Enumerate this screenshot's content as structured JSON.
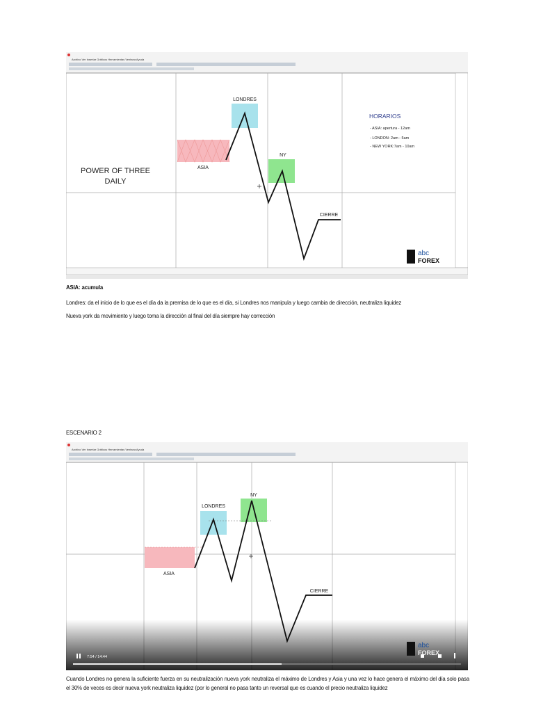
{
  "screenshot_1": {
    "menu": "Archivo   Ver   Insertar   Gráficos   Herramientas   Ventana   Ayuda",
    "chart_title_lines": [
      "POWER OF THREE",
      "DAILY"
    ],
    "labels": {
      "londres": "LONDRES",
      "asia": "ASIA",
      "ny": "NY",
      "cierre": "CIERRE"
    },
    "horarios": {
      "title": "HORARIOS",
      "items": [
        "- ASIA: apertura - 12am",
        "- LONDON: 2am - 5am",
        "- NEW YORK:7am - 10am"
      ]
    },
    "logo": {
      "brand": "abc",
      "name": "FOREX"
    }
  },
  "notes": [
    "ASIA: acumula",
    "Londres: da el inicio de lo que es el día da la premisa de lo que es el día, si Londres nos manipula y luego cambia de dirección, neutraliza liquidez",
    "Nueva york da movimiento y luego toma la dirección al final del día siempre hay corrección"
  ],
  "section_title": "ESCENARIO 2",
  "screenshot_2": {
    "menu": "Archivo   Ver   Insertar   Gráficos   Herramientas   Ventana   Ayuda",
    "labels": {
      "londres": "LONDRES",
      "asia": "ASIA",
      "ny": "NY",
      "cierre": "CIERRE"
    },
    "video_time": "7:54 / 14:44",
    "logo": {
      "brand": "abc",
      "name": "FOREX"
    }
  },
  "paragraph": "Cuando Londres no genera la suficiente fuerza en su neutralización nueva york neutraliza el máximo de Londres y Asia y una vez lo hace genera el máximo del día solo pasa el 30% de veces es decir nueva york neutraliza liquidez (por lo general no pasa tanto un reversal que es cuando el precio neutraliza liquidez"
}
